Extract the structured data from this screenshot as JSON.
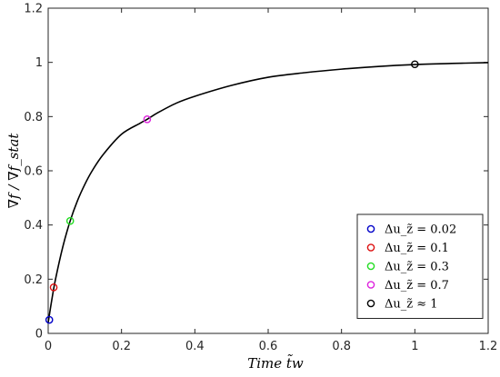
{
  "chart_data": {
    "type": "line",
    "xlabel": "Time   t̃w",
    "ylabel": "∇f / ∇f_stat",
    "xlim": [
      0,
      1.2
    ],
    "ylim": [
      0,
      1.2
    ],
    "x_ticks": [
      "0",
      "0.2",
      "0.4",
      "0.6",
      "0.8",
      "1",
      "1.2"
    ],
    "y_ticks": [
      "0",
      "0.2",
      "0.4",
      "0.6",
      "0.8",
      "1",
      "1.2"
    ],
    "grid": false,
    "legend_position": "bottom-right",
    "curve": {
      "color": "#000000",
      "x": [
        0,
        0.01,
        0.02,
        0.04,
        0.06,
        0.08,
        0.1,
        0.12,
        0.15,
        0.2,
        0.25,
        0.27,
        0.3,
        0.35,
        0.4,
        0.5,
        0.6,
        0.7,
        0.8,
        0.9,
        1.0,
        1.1,
        1.2
      ],
      "y": [
        0.04,
        0.125,
        0.2,
        0.32,
        0.415,
        0.49,
        0.55,
        0.6,
        0.66,
        0.735,
        0.775,
        0.79,
        0.815,
        0.85,
        0.875,
        0.915,
        0.945,
        0.962,
        0.975,
        0.985,
        0.992,
        0.996,
        0.999
      ]
    },
    "points": [
      {
        "label": "Δu_z̃ = 0.02",
        "x": 0.003,
        "y": 0.05,
        "color": "#0000c8"
      },
      {
        "label": "Δu_z̃ = 0.1",
        "x": 0.015,
        "y": 0.17,
        "color": "#dd1010"
      },
      {
        "label": "Δu_z̃ = 0.3",
        "x": 0.06,
        "y": 0.415,
        "color": "#22dd22"
      },
      {
        "label": "Δu_z̃ = 0.7",
        "x": 0.27,
        "y": 0.79,
        "color": "#dd22dd"
      },
      {
        "label": "Δu_z̃ ≈ 1",
        "x": 1.0,
        "y": 0.993,
        "color": "#000000"
      }
    ]
  }
}
